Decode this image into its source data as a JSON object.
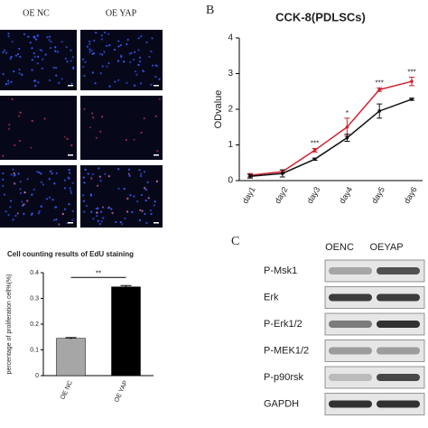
{
  "panel_a": {
    "column_labels": [
      "OE NC",
      "OE YAP"
    ]
  },
  "chart_data": [
    {
      "type": "bar",
      "title": "Cell counting results of EdU staining",
      "y_label": "percentage of proliferation cell%(%)",
      "categories": [
        "OE NC",
        "OE YAP"
      ],
      "values": [
        0.145,
        0.345
      ],
      "errors": [
        0.003,
        0.005
      ],
      "colors": [
        "#a6a6a6",
        "#000000"
      ],
      "ylim": [
        0,
        0.4
      ],
      "yticks": [
        0,
        0.1,
        0.2,
        0.3,
        0.4
      ],
      "annotation": "**"
    },
    {
      "type": "line",
      "panel_label": "B",
      "title": "CCK-8(PDLSCs)",
      "y_label": "ODvalue",
      "categories": [
        "day1",
        "day2",
        "day3",
        "day4",
        "day5",
        "day6"
      ],
      "series": [
        {
          "color": "#d0212f",
          "values": [
            0.15,
            0.25,
            0.85,
            1.5,
            2.55,
            2.78
          ],
          "errors": [
            0.05,
            0.05,
            0.05,
            0.25,
            0.05,
            0.12
          ]
        },
        {
          "color": "#111111",
          "values": [
            0.12,
            0.2,
            0.6,
            1.2,
            1.95,
            2.28
          ],
          "errors": [
            0.05,
            0.1,
            0.03,
            0.1,
            0.2,
            0.03
          ]
        }
      ],
      "ylim": [
        0,
        4
      ],
      "yticks": [
        0,
        1,
        2,
        3,
        4
      ],
      "annotations": [
        {
          "category": "day3",
          "text": "***"
        },
        {
          "category": "day4",
          "text": "*"
        },
        {
          "category": "day5",
          "text": "***"
        },
        {
          "category": "day6",
          "text": "***"
        }
      ]
    }
  ],
  "blot": {
    "panel_label": "C",
    "columns": [
      "OENC",
      "OEYAP"
    ],
    "rows": [
      "P-Msk1",
      "Erk",
      "P-Erk1/2",
      "P-MEK1/2",
      "P-p90rsk",
      "GAPDH"
    ]
  }
}
